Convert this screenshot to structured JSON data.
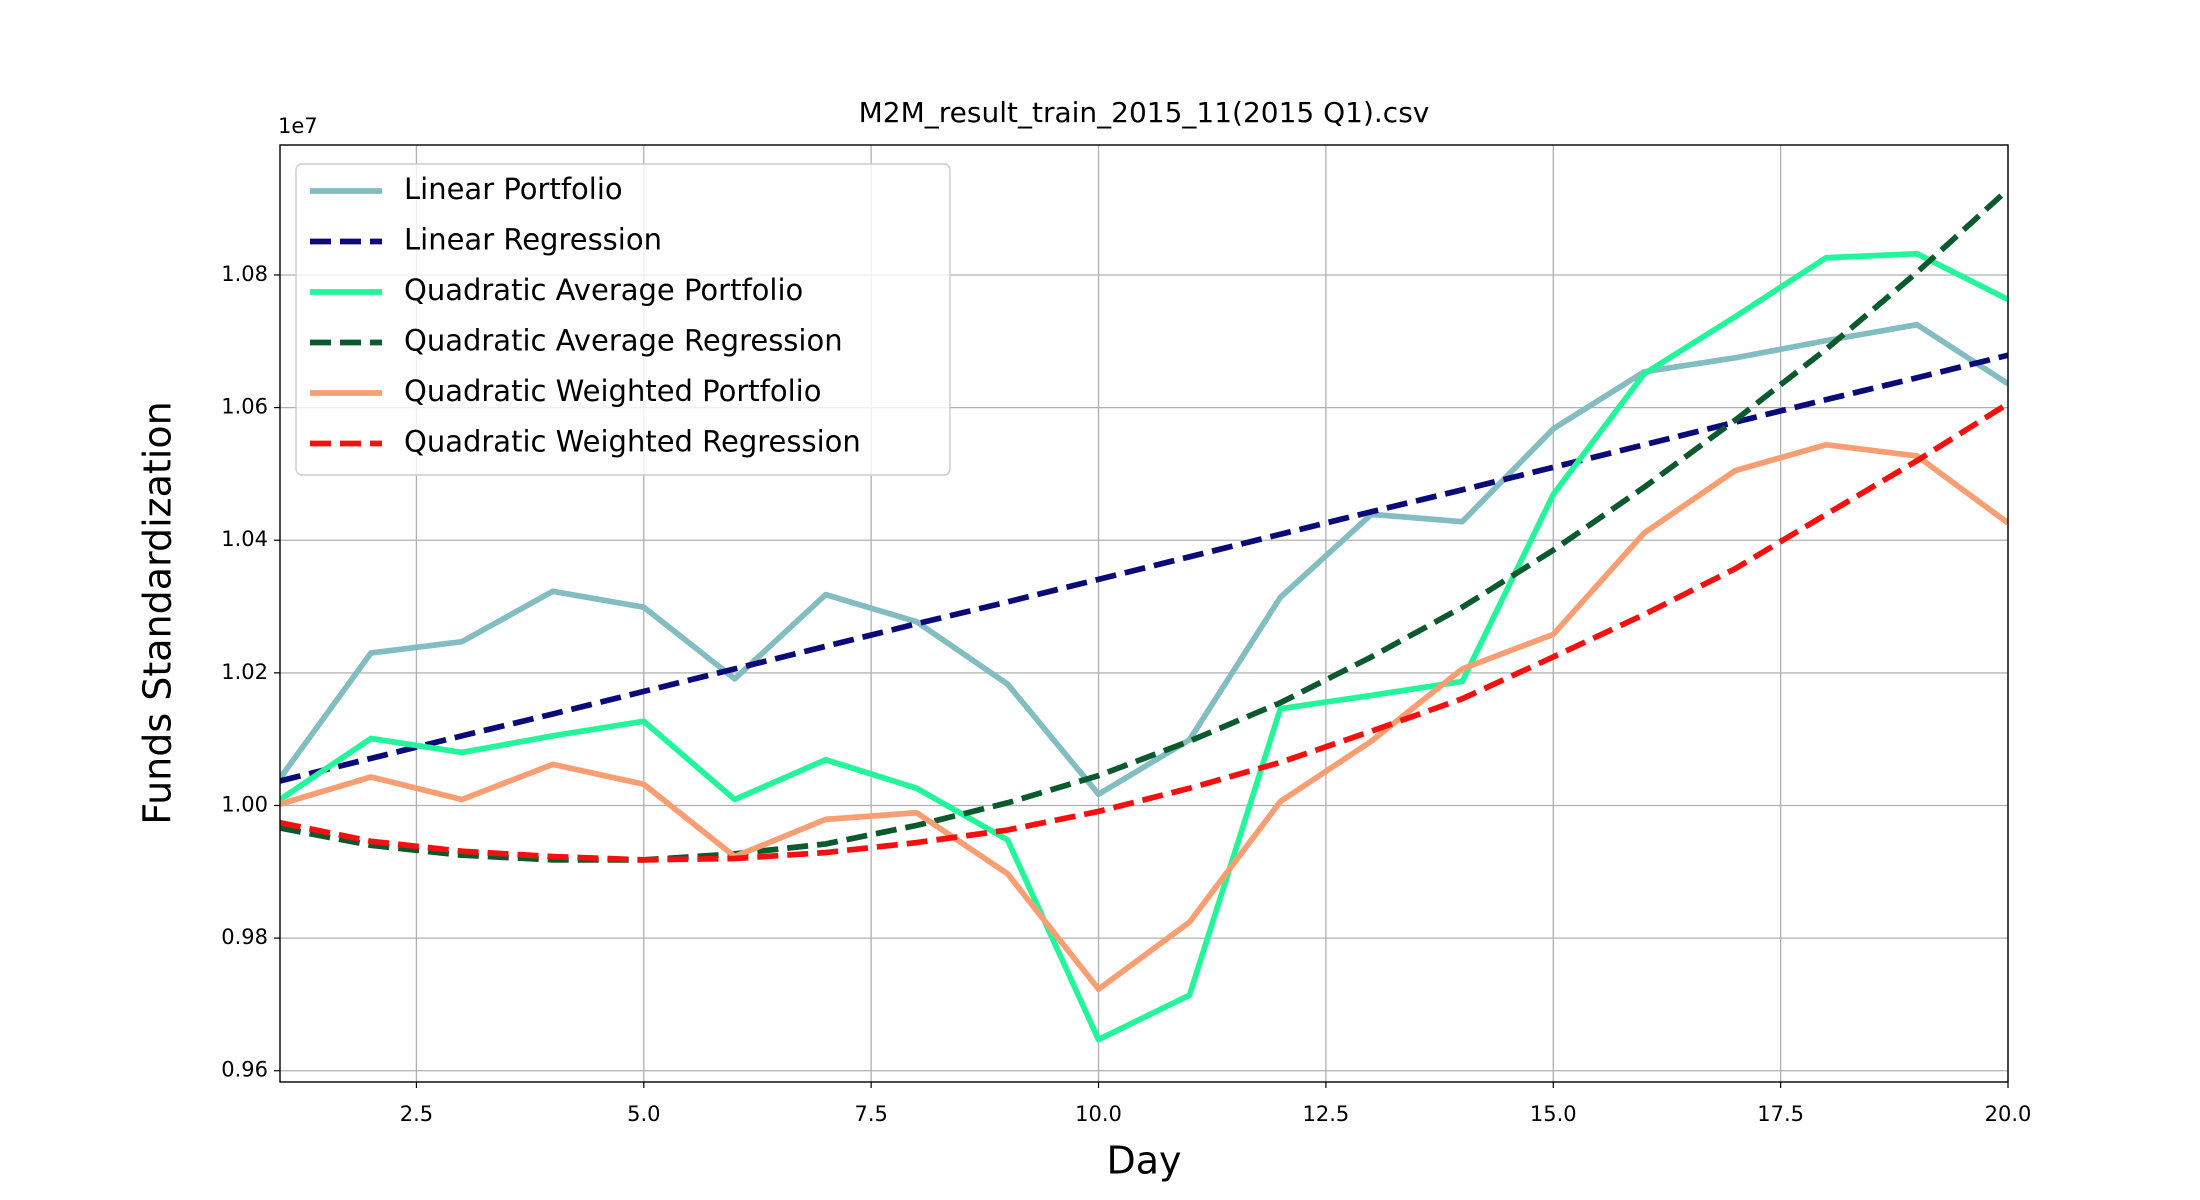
{
  "chart_data": {
    "type": "line",
    "title": "M2M_result_train_2015_11(2015 Q1).csv",
    "x_label": "Day",
    "y_label": "Funds Standardization",
    "y_offset_label": "1e7",
    "x": [
      1,
      2,
      3,
      4,
      5,
      6,
      7,
      8,
      9,
      10,
      11,
      12,
      13,
      14,
      15,
      16,
      17,
      18,
      19,
      20
    ],
    "series": [
      {
        "name": "Linear Portfolio",
        "color": "#82bdc1",
        "linestyle": "solid",
        "values": [
          1.0041,
          1.023,
          1.0247,
          1.0323,
          1.0299,
          1.0191,
          1.0318,
          1.0277,
          1.0183,
          1.0017,
          1.0099,
          1.0314,
          1.0439,
          1.0428,
          1.0568,
          1.0654,
          1.0675,
          1.0701,
          1.0725,
          1.0636
        ]
      },
      {
        "name": "Linear Regression",
        "color": "#0a0a78",
        "linestyle": "dashed",
        "values": [
          1.0037,
          1.0071,
          1.0105,
          1.0138,
          1.0172,
          1.0206,
          1.024,
          1.0274,
          1.0307,
          1.0341,
          1.0375,
          1.0409,
          1.0443,
          1.0476,
          1.051,
          1.0544,
          1.0578,
          1.0612,
          1.0645,
          1.0679
        ]
      },
      {
        "name": "Quadratic Average Portfolio",
        "color": "#22f59a",
        "linestyle": "solid",
        "values": [
          1.0009,
          1.0101,
          1.008,
          1.0105,
          1.0127,
          1.0009,
          1.0069,
          1.0026,
          0.9948,
          0.9647,
          0.9714,
          1.0146,
          1.0166,
          1.0187,
          1.0469,
          1.0651,
          1.0737,
          1.0826,
          1.0832,
          1.0763
        ]
      },
      {
        "name": "Quadratic Average Regression",
        "color": "#0b5a2e",
        "linestyle": "dashed",
        "values": [
          0.9966,
          0.994,
          0.9925,
          0.9918,
          0.9918,
          0.9927,
          0.9942,
          0.997,
          1.0004,
          1.0045,
          1.0097,
          1.0155,
          1.0224,
          1.0299,
          1.0385,
          1.048,
          1.0581,
          1.0688,
          1.0804,
          1.0929
        ]
      },
      {
        "name": "Quadratic Weighted Portfolio",
        "color": "#f99e72",
        "linestyle": "solid",
        "values": [
          1.0002,
          1.0043,
          1.0009,
          1.0062,
          1.0032,
          0.9923,
          0.9979,
          0.9989,
          0.9897,
          0.9723,
          0.9824,
          1.0006,
          1.0097,
          1.0206,
          1.0258,
          1.0411,
          1.0505,
          1.0544,
          1.0527,
          1.0426
        ]
      },
      {
        "name": "Quadratic Weighted Regression",
        "color": "#f51010",
        "linestyle": "dashed",
        "values": [
          0.9974,
          0.9946,
          0.9931,
          0.9923,
          0.9918,
          0.992,
          0.9929,
          0.9944,
          0.9963,
          0.9991,
          1.0026,
          1.0065,
          1.0112,
          1.0161,
          1.0224,
          1.0288,
          1.0357,
          1.0439,
          1.052,
          1.0606
        ]
      }
    ],
    "xlim": [
      1,
      20
    ],
    "xticks": [
      2.5,
      {
        "value": 5,
        "label": "5.0"
      },
      7.5,
      {
        "value": 10,
        "label": "10.0"
      },
      12.5,
      {
        "value": 15,
        "label": "15.0"
      },
      17.5,
      {
        "value": 20,
        "label": "20.0"
      }
    ],
    "ylim": [
      0.9583,
      1.0996
    ],
    "yticks": [
      {
        "value": 0.96,
        "label": "0.96"
      },
      {
        "value": 0.98,
        "label": "0.98"
      },
      {
        "value": 1.0,
        "label": "1.00"
      },
      {
        "value": 1.02,
        "label": "1.02"
      },
      {
        "value": 1.04,
        "label": "1.04"
      },
      {
        "value": 1.06,
        "label": "1.06"
      },
      {
        "value": 1.08,
        "label": "1.08"
      }
    ],
    "grid": true,
    "legend_position": "upper left"
  }
}
